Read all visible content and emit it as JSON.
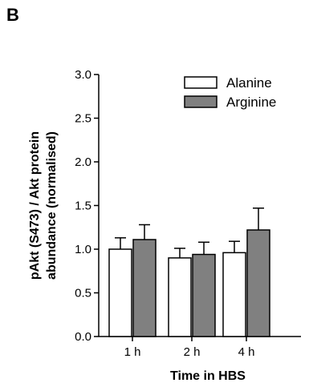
{
  "panel_label": "B",
  "chart_data": {
    "type": "bar",
    "title": "",
    "categories": [
      "1 h",
      "2 h",
      "4 h"
    ],
    "series": [
      {
        "name": "Alanine",
        "values": [
          1.0,
          0.9,
          0.96
        ],
        "errors": [
          0.13,
          0.11,
          0.13
        ],
        "color": "#ffffff"
      },
      {
        "name": "Arginine",
        "values": [
          1.11,
          0.94,
          1.22
        ],
        "errors": [
          0.17,
          0.14,
          0.25
        ],
        "color": "#808080"
      }
    ],
    "xlabel": "Time in HBS",
    "ylabel_lines": [
      "pAkt (S473) / Akt protein",
      "abundance (normalised)"
    ],
    "ylim": [
      0,
      3.0
    ],
    "yticks": [
      "0.0",
      "0.5",
      "1.0",
      "1.5",
      "2.0",
      "2.5",
      "3.0"
    ],
    "grid": false,
    "legend_position": "top-right"
  }
}
